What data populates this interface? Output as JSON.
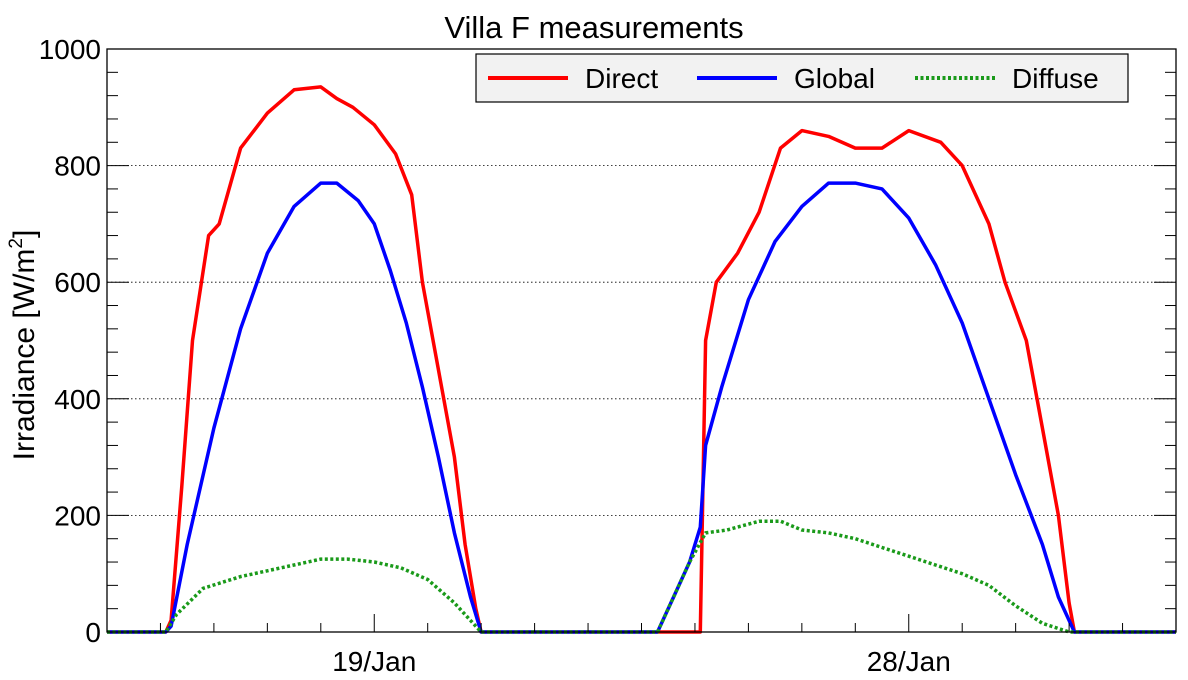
{
  "chart_data": {
    "type": "line",
    "title": "Villa F measurements",
    "xlabel": "",
    "ylabel": "Irradiance [W/m",
    "ylabel_sup": "2",
    "ylabel_end": "]",
    "ylim": [
      0,
      1000
    ],
    "yticks": [
      0,
      200,
      400,
      600,
      800,
      1000
    ],
    "xlim": [
      0,
      2
    ],
    "x_tick_labels": [
      {
        "label": "19/Jan",
        "x": 0.5
      },
      {
        "label": "28/Jan",
        "x": 1.5
      }
    ],
    "grid": {
      "horizontal": true,
      "vertical": false,
      "style": "dotted"
    },
    "legend": {
      "placement": "top-right",
      "frame": true
    },
    "series": [
      {
        "name": "Direct",
        "color": "#ff0000",
        "style": "solid",
        "points": [
          [
            0.0,
            0
          ],
          [
            0.11,
            0
          ],
          [
            0.12,
            20
          ],
          [
            0.14,
            250
          ],
          [
            0.16,
            500
          ],
          [
            0.19,
            680
          ],
          [
            0.21,
            700
          ],
          [
            0.25,
            830
          ],
          [
            0.3,
            890
          ],
          [
            0.35,
            930
          ],
          [
            0.4,
            935
          ],
          [
            0.43,
            915
          ],
          [
            0.46,
            900
          ],
          [
            0.5,
            870
          ],
          [
            0.54,
            820
          ],
          [
            0.57,
            750
          ],
          [
            0.59,
            600
          ],
          [
            0.62,
            450
          ],
          [
            0.65,
            300
          ],
          [
            0.67,
            150
          ],
          [
            0.69,
            40
          ],
          [
            0.7,
            0
          ],
          [
            1.0,
            0
          ],
          [
            1.1,
            0
          ],
          [
            1.11,
            0
          ],
          [
            1.12,
            500
          ],
          [
            1.14,
            600
          ],
          [
            1.18,
            650
          ],
          [
            1.22,
            720
          ],
          [
            1.26,
            830
          ],
          [
            1.3,
            860
          ],
          [
            1.35,
            850
          ],
          [
            1.4,
            830
          ],
          [
            1.45,
            830
          ],
          [
            1.5,
            860
          ],
          [
            1.56,
            840
          ],
          [
            1.6,
            800
          ],
          [
            1.65,
            700
          ],
          [
            1.68,
            600
          ],
          [
            1.72,
            500
          ],
          [
            1.75,
            350
          ],
          [
            1.78,
            200
          ],
          [
            1.8,
            50
          ],
          [
            1.81,
            0
          ],
          [
            2.0,
            0
          ]
        ]
      },
      {
        "name": "Global",
        "color": "#0000ff",
        "style": "solid",
        "points": [
          [
            0.0,
            0
          ],
          [
            0.11,
            0
          ],
          [
            0.12,
            10
          ],
          [
            0.15,
            150
          ],
          [
            0.2,
            350
          ],
          [
            0.25,
            520
          ],
          [
            0.3,
            650
          ],
          [
            0.35,
            730
          ],
          [
            0.4,
            770
          ],
          [
            0.43,
            770
          ],
          [
            0.47,
            740
          ],
          [
            0.5,
            700
          ],
          [
            0.53,
            620
          ],
          [
            0.56,
            530
          ],
          [
            0.59,
            420
          ],
          [
            0.62,
            300
          ],
          [
            0.65,
            170
          ],
          [
            0.68,
            60
          ],
          [
            0.7,
            0
          ],
          [
            1.0,
            0
          ],
          [
            1.03,
            0
          ],
          [
            1.06,
            60
          ],
          [
            1.09,
            120
          ],
          [
            1.11,
            180
          ],
          [
            1.12,
            320
          ],
          [
            1.15,
            420
          ],
          [
            1.2,
            570
          ],
          [
            1.25,
            670
          ],
          [
            1.3,
            730
          ],
          [
            1.35,
            770
          ],
          [
            1.4,
            770
          ],
          [
            1.45,
            760
          ],
          [
            1.5,
            710
          ],
          [
            1.55,
            630
          ],
          [
            1.6,
            530
          ],
          [
            1.65,
            400
          ],
          [
            1.7,
            270
          ],
          [
            1.75,
            150
          ],
          [
            1.78,
            60
          ],
          [
            1.81,
            0
          ],
          [
            2.0,
            0
          ]
        ]
      },
      {
        "name": "Diffuse",
        "color": "#1a9a1a",
        "style": "dotted",
        "points": [
          [
            0.0,
            0
          ],
          [
            0.11,
            0
          ],
          [
            0.13,
            30
          ],
          [
            0.18,
            75
          ],
          [
            0.25,
            95
          ],
          [
            0.3,
            105
          ],
          [
            0.35,
            115
          ],
          [
            0.4,
            125
          ],
          [
            0.45,
            125
          ],
          [
            0.5,
            120
          ],
          [
            0.55,
            110
          ],
          [
            0.6,
            90
          ],
          [
            0.65,
            50
          ],
          [
            0.69,
            10
          ],
          [
            0.7,
            0
          ],
          [
            1.0,
            0
          ],
          [
            1.03,
            0
          ],
          [
            1.06,
            60
          ],
          [
            1.09,
            120
          ],
          [
            1.12,
            170
          ],
          [
            1.16,
            175
          ],
          [
            1.22,
            190
          ],
          [
            1.26,
            190
          ],
          [
            1.3,
            175
          ],
          [
            1.35,
            170
          ],
          [
            1.4,
            160
          ],
          [
            1.45,
            145
          ],
          [
            1.5,
            130
          ],
          [
            1.55,
            115
          ],
          [
            1.6,
            100
          ],
          [
            1.65,
            80
          ],
          [
            1.7,
            45
          ],
          [
            1.75,
            15
          ],
          [
            1.8,
            0
          ],
          [
            2.0,
            0
          ]
        ]
      }
    ]
  }
}
